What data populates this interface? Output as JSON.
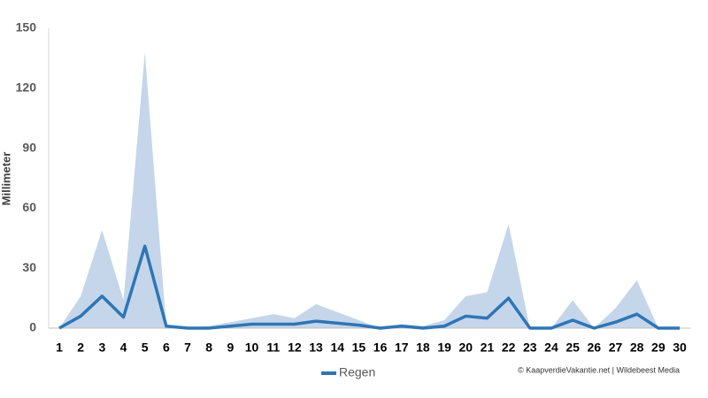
{
  "chart_data": {
    "type": "line",
    "y_label": "Millimeter",
    "categories": [
      "1",
      "2",
      "3",
      "4",
      "5",
      "6",
      "7",
      "8",
      "9",
      "10",
      "11",
      "12",
      "13",
      "14",
      "15",
      "16",
      "17",
      "18",
      "19",
      "20",
      "21",
      "22",
      "23",
      "24",
      "25",
      "26",
      "27",
      "28",
      "29",
      "30"
    ],
    "series": [
      {
        "name": "Regen",
        "color": "#2e75b6",
        "values": [
          0,
          6,
          16,
          5.5,
          41,
          1,
          0,
          0,
          1,
          2,
          2,
          2,
          3.5,
          2.5,
          1.5,
          0,
          1,
          0,
          1,
          6,
          5,
          15,
          0,
          0,
          4,
          0,
          3,
          7,
          0,
          0
        ]
      }
    ],
    "area": {
      "color": "#c5d6ea",
      "values": [
        0,
        16,
        49,
        14,
        138,
        1,
        0,
        1,
        3,
        5,
        7,
        5,
        12,
        8,
        4,
        0,
        2,
        1,
        4,
        16,
        18,
        52,
        0,
        0,
        14,
        0,
        10,
        24,
        0,
        0
      ]
    },
    "ylim": [
      0,
      150
    ],
    "yticks": [
      0,
      30,
      60,
      90,
      120,
      150
    ],
    "credit": "© KaapverdieVakantie.net | Wildebeest Media"
  }
}
